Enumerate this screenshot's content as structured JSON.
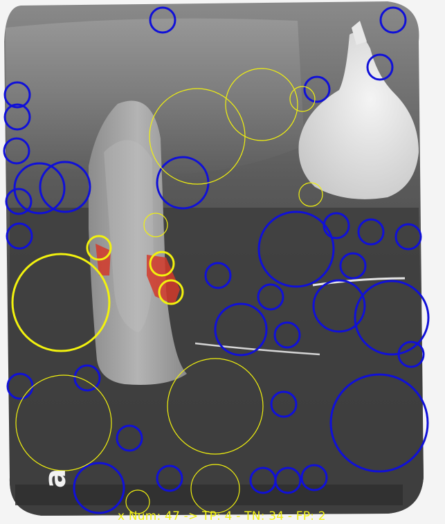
{
  "image": {
    "subject": "dental periapical radiograph with detection circle overlay",
    "colors": {
      "detection_blue": "#1010d8",
      "detection_yellow": "#f2f20e",
      "highlight_red": "#d23a2a",
      "stats_text": "#f1f114"
    }
  },
  "film_marker": {
    "letter": "a"
  },
  "stats": {
    "text": "x Num: 47 -> TP: 4 - TN: 34 - FP: 2"
  },
  "legend_counts": {
    "num": 47,
    "tp": 4,
    "tn": 34,
    "fp": 2
  }
}
